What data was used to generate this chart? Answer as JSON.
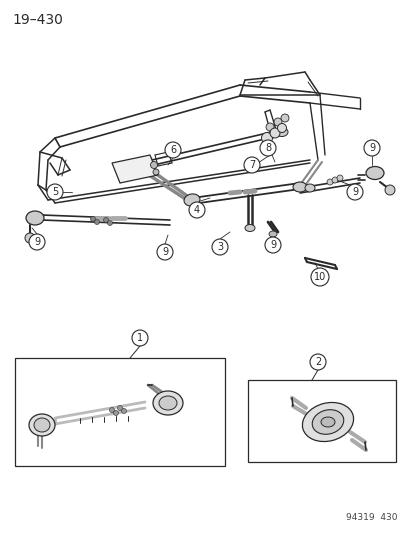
{
  "title": "19–430",
  "footer": "94319  430",
  "bg_color": "#ffffff",
  "line_color": "#2a2a2a",
  "circle_color": "#ffffff",
  "circle_edge": "#2a2a2a",
  "title_fontsize": 10,
  "footer_fontsize": 6.5,
  "label_fontsize": 7,
  "fig_width": 4.14,
  "fig_height": 5.33,
  "dpi": 100
}
